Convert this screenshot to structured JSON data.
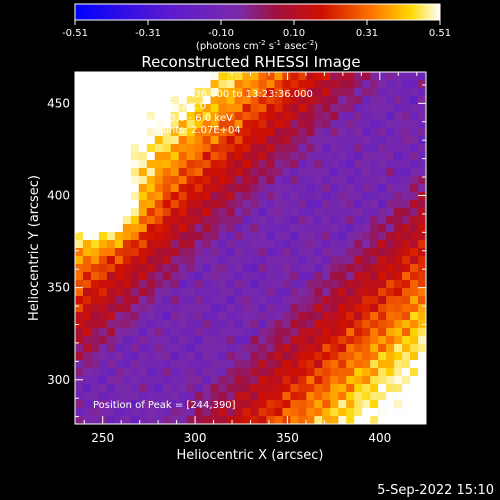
{
  "chart_data": {
    "type": "heatmap",
    "title": "Reconstructed RHESSI Image",
    "xlabel": "Heliocentric X (arcsec)",
    "ylabel": "Heliocentric Y (arcsec)",
    "xlim": [
      235,
      425
    ],
    "ylim": [
      276,
      467
    ],
    "x_ticks": [
      250,
      300,
      350,
      400
    ],
    "y_ticks": [
      300,
      350,
      400,
      450
    ],
    "colorbar": {
      "min": -0.51,
      "max": 0.51,
      "ticks": [
        "-0.51",
        "-0.31",
        "-0.10",
        "0.10",
        "0.31",
        "0.51"
      ],
      "unit_text": "(photons cm",
      "unit_exp1": "-2",
      "unit_mid": " s",
      "unit_exp2": "-1",
      "unit_mid2": " asec",
      "unit_exp3": "-2",
      "unit_end": ")"
    },
    "info_lines": [
      "15-May-2018 13:17:36.000 to 13:23:36.000",
      "Detectors: 3F 8F, Att 0",
      "Energy Range: 3.0 - 6.0 keV",
      "Clean   Total counts: 2.07E+04"
    ],
    "peak_text": "Position of Peak = [244,390]",
    "peak_position": [
      244,
      390
    ],
    "colors": {
      "low": "#0000ff",
      "mid": "#7a2aa8",
      "high": "#ffffff"
    }
  },
  "footer": {
    "timestamp": "5-Sep-2022 15:10"
  }
}
